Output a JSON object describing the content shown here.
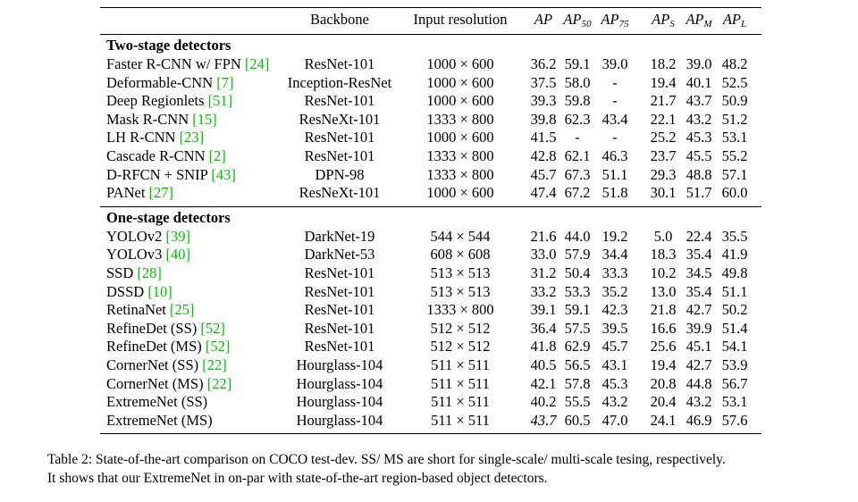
{
  "header": {
    "backbone": "Backbone",
    "resolution": "Input resolution",
    "metrics": [
      {
        "main": "AP",
        "sub": ""
      },
      {
        "main": "AP",
        "sub": "50"
      },
      {
        "main": "AP",
        "sub": "75"
      },
      {
        "main": "AP",
        "sub": "S"
      },
      {
        "main": "AP",
        "sub": "M"
      },
      {
        "main": "AP",
        "sub": "L"
      }
    ]
  },
  "sections": [
    {
      "title": "Two-stage detectors",
      "rows": [
        {
          "name": "Faster R-CNN w/ FPN",
          "cite": "[24]",
          "backbone": "ResNet-101",
          "res": "1000 × 600",
          "vals": [
            "36.2",
            "59.1",
            "39.0",
            "18.2",
            "39.0",
            "48.2"
          ]
        },
        {
          "name": "Deformable-CNN",
          "cite": "[7]",
          "backbone": "Inception-ResNet",
          "res": "1000 × 600",
          "vals": [
            "37.5",
            "58.0",
            "-",
            "19.4",
            "40.1",
            "52.5"
          ]
        },
        {
          "name": "Deep Regionlets",
          "cite": "[51]",
          "backbone": "ResNet-101",
          "res": "1000 × 600",
          "vals": [
            "39.3",
            "59.8",
            "-",
            "21.7",
            "43.7",
            "50.9"
          ]
        },
        {
          "name": "Mask R-CNN",
          "cite": "[15]",
          "backbone": "ResNeXt-101",
          "res": "1333 × 800",
          "vals": [
            "39.8",
            "62.3",
            "43.4",
            "22.1",
            "43.2",
            "51.2"
          ]
        },
        {
          "name": "LH R-CNN",
          "cite": "[23]",
          "backbone": "ResNet-101",
          "res": "1000 × 600",
          "vals": [
            "41.5",
            "-",
            "-",
            "25.2",
            "45.3",
            "53.1"
          ]
        },
        {
          "name": "Cascade R-CNN",
          "cite": "[2]",
          "backbone": "ResNet-101",
          "res": "1333 × 800",
          "vals": [
            "42.8",
            "62.1",
            "46.3",
            "23.7",
            "45.5",
            "55.2"
          ]
        },
        {
          "name": "D-RFCN + SNIP",
          "cite": "[43]",
          "backbone": "DPN-98",
          "res": "1333 × 800",
          "vals": [
            "45.7",
            "67.3",
            "51.1",
            "29.3",
            "48.8",
            "57.1"
          ]
        },
        {
          "name": "PANet",
          "cite": "[27]",
          "backbone": "ResNeXt-101",
          "res": "1000 × 600",
          "vals": [
            "47.4",
            "67.2",
            "51.8",
            "30.1",
            "51.7",
            "60.0"
          ]
        }
      ]
    },
    {
      "title": "One-stage detectors",
      "rows": [
        {
          "name": "YOLOv2",
          "cite": "[39]",
          "backbone": "DarkNet-19",
          "res": "544 × 544",
          "vals": [
            "21.6",
            "44.0",
            "19.2",
            "5.0",
            "22.4",
            "35.5"
          ]
        },
        {
          "name": "YOLOv3",
          "cite": "[40]",
          "backbone": "DarkNet-53",
          "res": "608 × 608",
          "vals": [
            "33.0",
            "57.9",
            "34.4",
            "18.3",
            "35.4",
            "41.9"
          ]
        },
        {
          "name": "SSD",
          "cite": "[28]",
          "backbone": "ResNet-101",
          "res": "513 × 513",
          "vals": [
            "31.2",
            "50.4",
            "33.3",
            "10.2",
            "34.5",
            "49.8"
          ]
        },
        {
          "name": "DSSD",
          "cite": "[10]",
          "backbone": "ResNet-101",
          "res": "513 × 513",
          "vals": [
            "33.2",
            "53.3",
            "35.2",
            "13.0",
            "35.4",
            "51.1"
          ]
        },
        {
          "name": "RetinaNet",
          "cite": "[25]",
          "backbone": "ResNet-101",
          "res": "1333 × 800",
          "vals": [
            "39.1",
            "59.1",
            "42.3",
            "21.8",
            "42.7",
            "50.2"
          ]
        },
        {
          "name": "RefineDet (SS)",
          "cite": "[52]",
          "backbone": "ResNet-101",
          "res": "512 × 512",
          "vals": [
            "36.4",
            "57.5",
            "39.5",
            "16.6",
            "39.9",
            "51.4"
          ]
        },
        {
          "name": "RefineDet (MS)",
          "cite": "[52]",
          "backbone": "ResNet-101",
          "res": "512 × 512",
          "vals": [
            "41.8",
            "62.9",
            "45.7",
            "25.6",
            "45.1",
            "54.1"
          ]
        },
        {
          "name": "CornerNet (SS)",
          "cite": "[22]",
          "backbone": "Hourglass-104",
          "res": "511 × 511",
          "vals": [
            "40.5",
            "56.5",
            "43.1",
            "19.4",
            "42.7",
            "53.9"
          ]
        },
        {
          "name": "CornerNet (MS)",
          "cite": "[22]",
          "backbone": "Hourglass-104",
          "res": "511 × 511",
          "vals": [
            "42.1",
            "57.8",
            "45.3",
            "20.8",
            "44.8",
            "56.7"
          ]
        },
        {
          "name": "ExtremeNet (SS)",
          "cite": "",
          "backbone": "Hourglass-104",
          "res": "511 × 511",
          "vals": [
            "40.2",
            "55.5",
            "43.2",
            "20.4",
            "43.2",
            "53.1"
          ]
        },
        {
          "name": "ExtremeNet (MS)",
          "cite": "",
          "backbone": "Hourglass-104",
          "res": "511 × 511",
          "vals": [
            "43.7",
            "60.5",
            "47.0",
            "24.1",
            "46.9",
            "57.6"
          ],
          "italic_first": true
        }
      ]
    }
  ],
  "caption": {
    "line1": "Table 2: State-of-the-art comparison on COCO test-dev. SS/ MS are short for single-scale/ multi-scale tesing, respectively.",
    "line2": "It shows that our ExtremeNet in on-par with state-of-the-art region-based object detectors."
  }
}
